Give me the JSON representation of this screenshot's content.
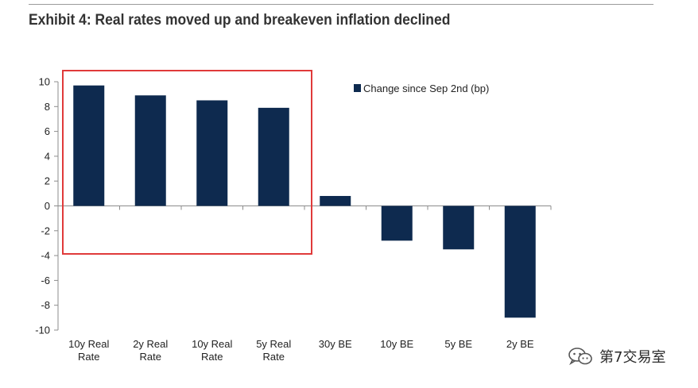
{
  "title": "Exhibit 4: Real rates moved up and breakeven inflation declined",
  "watermark": {
    "text": "第7交易室",
    "icon": "wechat-icon"
  },
  "colors": {
    "bar": "#0e2a4f",
    "highlight_box": "#e03a3a",
    "axis": "#8c8c8c"
  },
  "chart_data": {
    "type": "bar",
    "title": "Exhibit 4: Real rates moved up and breakeven inflation declined",
    "categories": [
      [
        "10y Real",
        "Rate"
      ],
      [
        "2y Real",
        "Rate"
      ],
      [
        "10y Real",
        "Rate"
      ],
      [
        "5y Real",
        "Rate"
      ],
      [
        "30y BE"
      ],
      [
        "10y BE"
      ],
      [
        "5y BE"
      ],
      [
        "2y BE"
      ]
    ],
    "series": [
      {
        "name": "Change since Sep 2nd (bp)",
        "values": [
          9.7,
          8.9,
          8.5,
          7.9,
          0.8,
          -2.8,
          -3.5,
          -9.0
        ]
      }
    ],
    "ylim": [
      -10,
      10
    ],
    "yticks": [
      10,
      8,
      6,
      4,
      2,
      0,
      -2,
      -4,
      -6,
      -8,
      -10
    ],
    "grid": false,
    "legend": "top-right",
    "highlighted_categories": [
      0,
      1,
      2,
      3
    ]
  }
}
